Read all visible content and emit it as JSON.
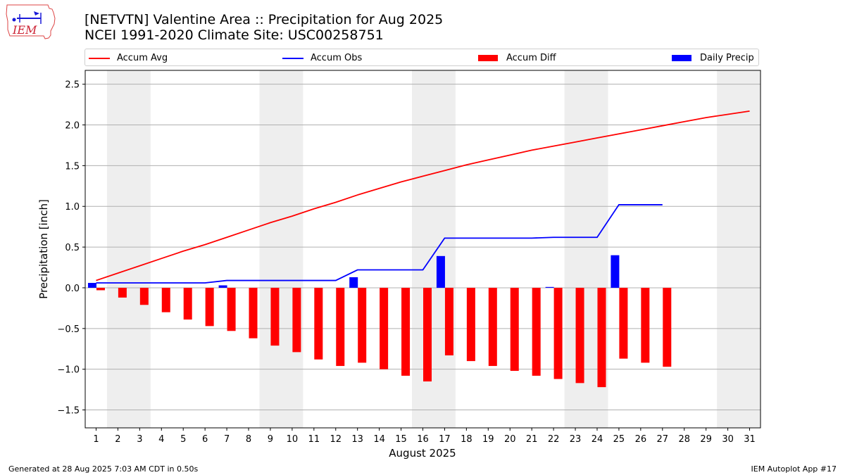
{
  "logo": {
    "text": "IEM"
  },
  "title_line1": "[NETVTN] Valentine Area :: Precipitation for Aug 2025",
  "title_line2": "NCEI 1991-2020 Climate Site: USC00258751",
  "legend": [
    {
      "name": "Accum Avg",
      "kind": "line",
      "color": "#ff0000"
    },
    {
      "name": "Accum Obs",
      "kind": "line",
      "color": "#0000ff"
    },
    {
      "name": "Accum Diff",
      "kind": "bar",
      "color": "#ff0000"
    },
    {
      "name": "Daily Precip",
      "kind": "bar",
      "color": "#0000ff"
    }
  ],
  "footer": {
    "left": "Generated at 28 Aug 2025 7:03 AM CDT in 0.50s",
    "right": "IEM Autoplot App #17"
  },
  "chart_data": {
    "type": "bar",
    "title": "[NETVTN] Valentine Area :: Precipitation for Aug 2025",
    "subtitle": "NCEI 1991-2020 Climate Site: USC00258751",
    "xlabel": "August 2025",
    "ylabel": "Precipitation [inch]",
    "ylim": [
      -1.72,
      2.67
    ],
    "xlim": [
      0.5,
      31.5
    ],
    "yticks": [
      -1.5,
      -1.0,
      -0.5,
      0.0,
      0.5,
      1.0,
      1.5,
      2.0,
      2.5
    ],
    "ytick_labels": [
      "−1.5",
      "−1.0",
      "−0.5",
      "0.0",
      "0.5",
      "1.0",
      "1.5",
      "2.0",
      "2.5"
    ],
    "days": [
      1,
      2,
      3,
      4,
      5,
      6,
      7,
      8,
      9,
      10,
      11,
      12,
      13,
      14,
      15,
      16,
      17,
      18,
      19,
      20,
      21,
      22,
      23,
      24,
      25,
      26,
      27,
      28,
      29,
      30,
      31
    ],
    "grid": "horizontal",
    "weekend_shading": [
      [
        1.5,
        3.5
      ],
      [
        8.5,
        10.5
      ],
      [
        15.5,
        17.5
      ],
      [
        22.5,
        24.5
      ],
      [
        29.5,
        31.5
      ]
    ],
    "shading_color": "#eeeeee",
    "series": [
      {
        "name": "Accum Avg",
        "kind": "line",
        "color": "#ff0000",
        "values": [
          0.09,
          0.18,
          0.27,
          0.36,
          0.45,
          0.53,
          0.62,
          0.71,
          0.8,
          0.88,
          0.97,
          1.05,
          1.14,
          1.22,
          1.3,
          1.37,
          1.44,
          1.51,
          1.57,
          1.63,
          1.69,
          1.74,
          1.79,
          1.84,
          1.89,
          1.94,
          1.99,
          2.04,
          2.09,
          2.13,
          2.17
        ]
      },
      {
        "name": "Accum Obs",
        "kind": "line",
        "color": "#0000ff",
        "values": [
          0.06,
          0.06,
          0.06,
          0.06,
          0.06,
          0.06,
          0.09,
          0.09,
          0.09,
          0.09,
          0.09,
          0.09,
          0.22,
          0.22,
          0.22,
          0.22,
          0.61,
          0.61,
          0.61,
          0.61,
          0.61,
          0.62,
          0.62,
          0.62,
          1.02,
          1.02,
          1.02
        ]
      },
      {
        "name": "Accum Diff",
        "kind": "bar",
        "color": "#ff0000",
        "values": [
          -0.03,
          -0.12,
          -0.21,
          -0.3,
          -0.39,
          -0.47,
          -0.53,
          -0.62,
          -0.71,
          -0.79,
          -0.88,
          -0.96,
          -0.92,
          -1.0,
          -1.08,
          -1.15,
          -0.83,
          -0.9,
          -0.96,
          -1.02,
          -1.08,
          -1.12,
          -1.17,
          -1.22,
          -0.87,
          -0.92,
          -0.97
        ]
      },
      {
        "name": "Daily Precip",
        "kind": "bar",
        "color": "#0000ff",
        "values": [
          0.06,
          0.0,
          0.0,
          0.0,
          0.0,
          0.0,
          0.03,
          0.0,
          0.0,
          0.0,
          0.0,
          0.0,
          0.13,
          0.0,
          0.0,
          0.0,
          0.39,
          0.0,
          0.0,
          0.0,
          0.0,
          0.01,
          0.0,
          0.0,
          0.4,
          0.0,
          0.0
        ]
      }
    ]
  }
}
